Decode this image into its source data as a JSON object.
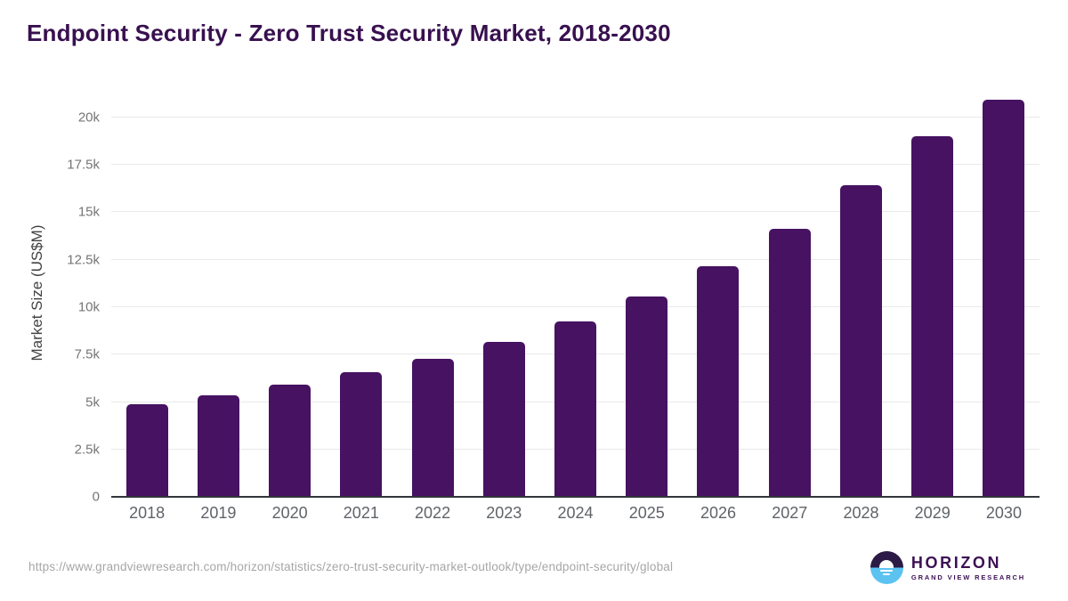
{
  "title": "Endpoint Security - Zero Trust Security Market, 2018-2030",
  "colors": {
    "bar": "#471261",
    "title_text": "#38104f",
    "logo_text": "#3d1054",
    "logo_blue": "#5cc3f1",
    "gridline": "#e9e9e9",
    "axis_line": "#33363b"
  },
  "chart_data": {
    "type": "bar",
    "title": "Endpoint Security - Zero Trust Security Market, 2018-2030",
    "categories": [
      "2018",
      "2019",
      "2020",
      "2021",
      "2022",
      "2023",
      "2024",
      "2025",
      "2026",
      "2027",
      "2028",
      "2029",
      "2030"
    ],
    "values": [
      4900,
      5350,
      5900,
      6550,
      7300,
      8150,
      9250,
      10550,
      12150,
      14150,
      16450,
      19000,
      20950
    ],
    "xlabel": "",
    "ylabel": "Market Size (US$M)",
    "ylim": [
      0,
      21500
    ],
    "yticks": [
      0,
      2500,
      5000,
      7500,
      10000,
      12500,
      15000,
      17500,
      20000
    ],
    "ytick_labels": [
      "0",
      "2.5k",
      "5k",
      "7.5k",
      "10k",
      "12.5k",
      "15k",
      "17.5k",
      "20k"
    ],
    "grid": true,
    "legend": false,
    "bar_color": "#471261"
  },
  "footer": {
    "source_url": "https://www.grandviewresearch.com/horizon/statistics/zero-trust-security-market-outlook/type/endpoint-security/global",
    "logo": {
      "name": "HORIZON",
      "subtitle": "GRAND VIEW RESEARCH"
    }
  }
}
